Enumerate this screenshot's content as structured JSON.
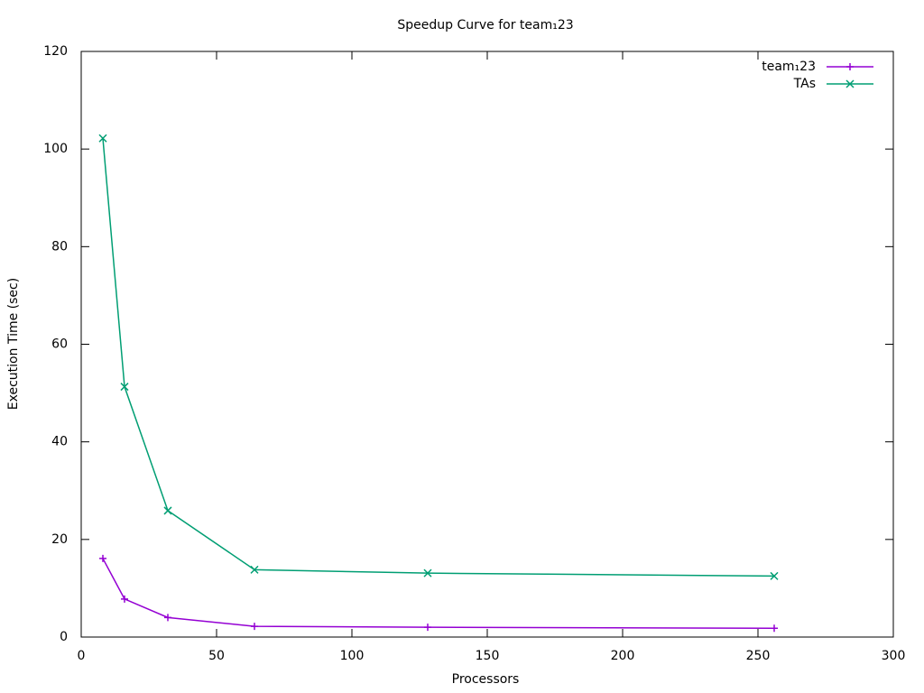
{
  "chart_data": {
    "type": "line",
    "title": "Speedup Curve for team₁23",
    "x_label": "Processors",
    "y_label": "Execution Time (sec)",
    "x": [
      8,
      16,
      32,
      64,
      128,
      256
    ],
    "series": [
      {
        "name": "team₁23",
        "color": "#9400d3",
        "marker": "plus",
        "values": [
          16.1,
          7.8,
          4.0,
          2.2,
          2.0,
          1.8
        ]
      },
      {
        "name": "TAs",
        "color": "#009e73",
        "marker": "cross",
        "values": [
          102.2,
          51.3,
          25.9,
          13.8,
          13.1,
          12.5
        ]
      }
    ],
    "xlim": [
      0,
      300
    ],
    "xticks": [
      0,
      50,
      100,
      150,
      200,
      250,
      300
    ],
    "ylim": [
      0,
      120
    ],
    "yticks": [
      0,
      20,
      40,
      60,
      80,
      100,
      120
    ],
    "grid": false,
    "legend": "top-right"
  }
}
